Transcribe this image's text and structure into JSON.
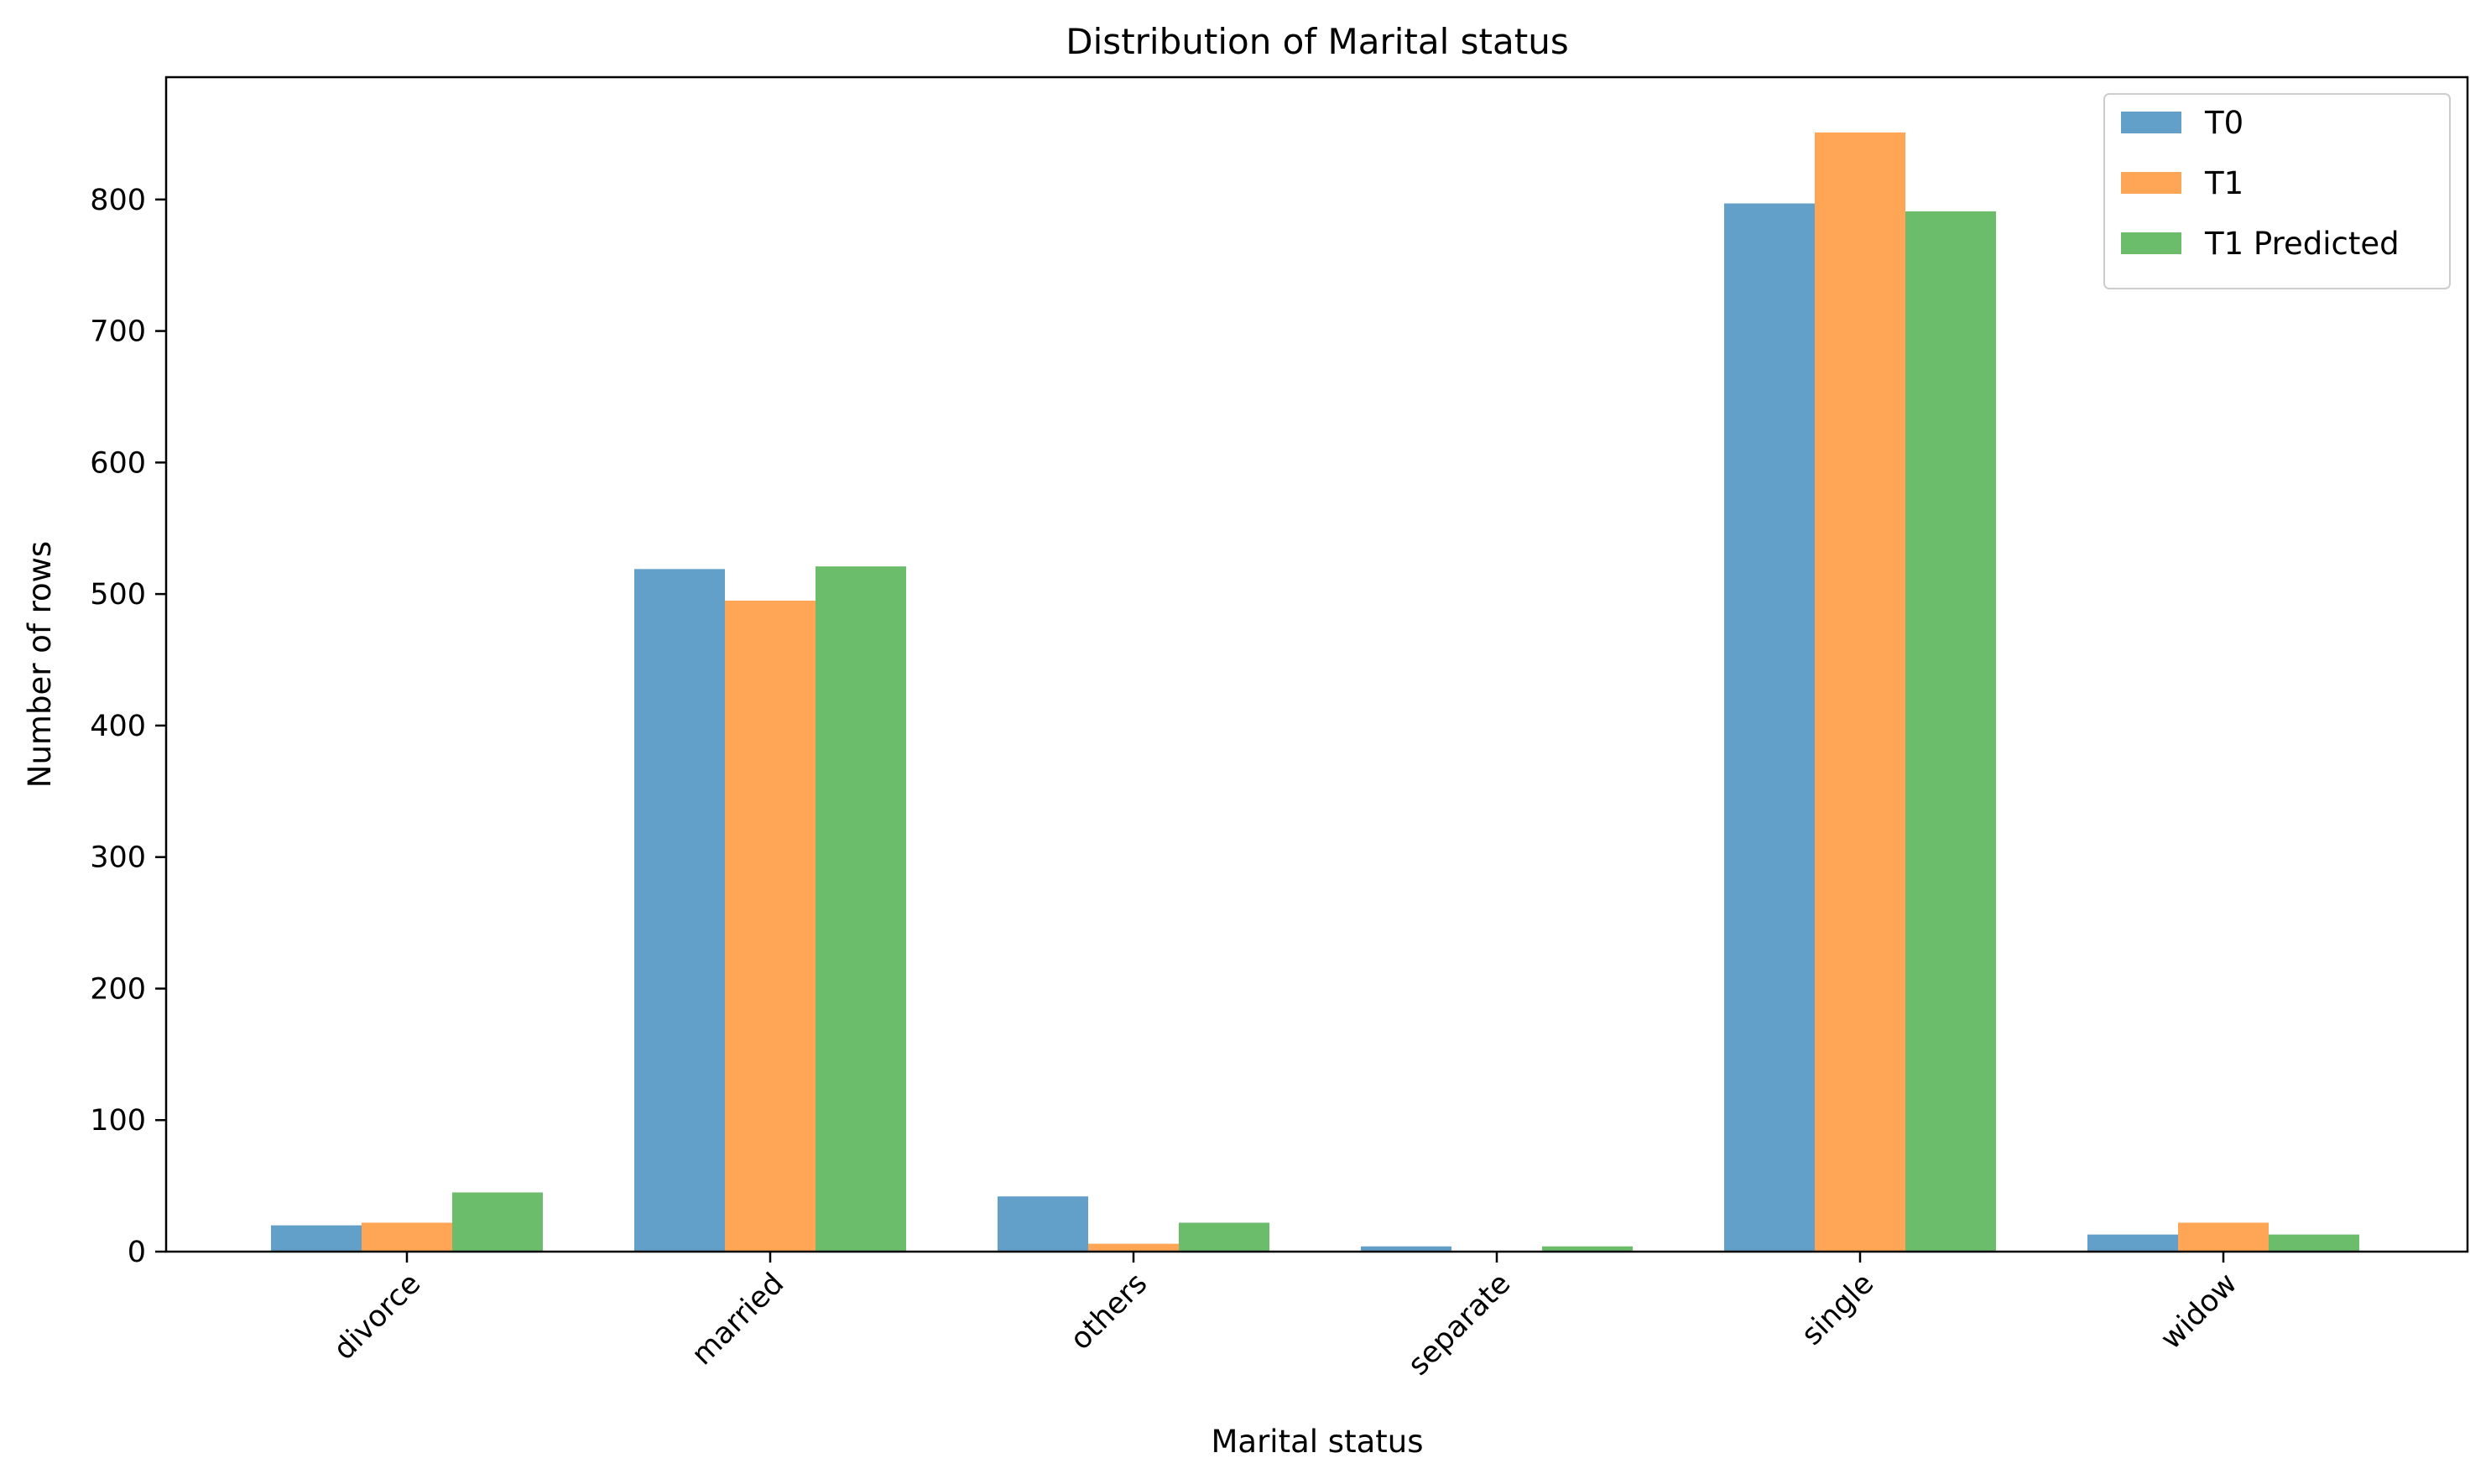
{
  "chart_data": {
    "type": "bar",
    "title": "Distribution of Marital status",
    "xlabel": "Marital status",
    "ylabel": "Number of rows",
    "categories": [
      "divorce",
      "married",
      "others",
      "separate",
      "single",
      "widow"
    ],
    "series": [
      {
        "name": "T0",
        "color": "#1f77b4",
        "values": [
          20,
          519,
          42,
          4,
          797,
          13
        ]
      },
      {
        "name": "T1",
        "color": "#ff7f0e",
        "values": [
          22,
          495,
          6,
          0,
          851,
          22
        ]
      },
      {
        "name": "T1 Predicted",
        "color": "#2ca02c",
        "values": [
          45,
          521,
          22,
          4,
          791,
          13
        ]
      }
    ],
    "yticks": [
      0,
      100,
      200,
      300,
      400,
      500,
      600,
      700,
      800
    ],
    "ylim": [
      0,
      893
    ],
    "grid": false,
    "legend_position": "top-right",
    "bar_opacity": 0.7
  }
}
